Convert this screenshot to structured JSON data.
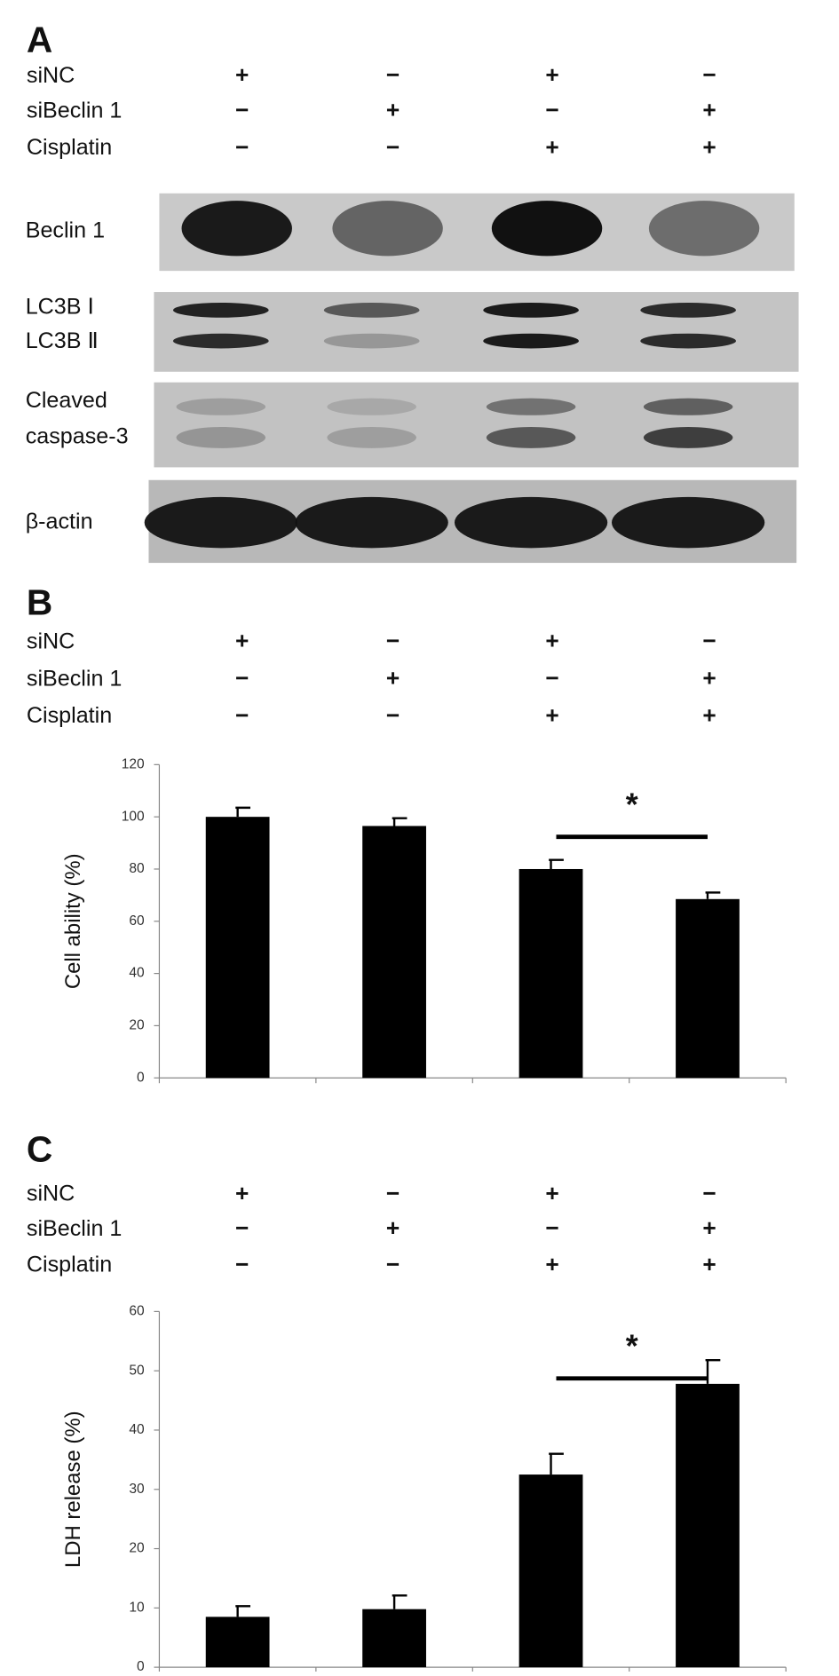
{
  "panels": [
    {
      "label": "A",
      "conditions": [
        {
          "name": "siNC",
          "signs": [
            "+",
            "−",
            "+",
            "−"
          ]
        },
        {
          "name": "siBeclin 1",
          "signs": [
            "−",
            "+",
            "−",
            "+"
          ]
        },
        {
          "name": "Cisplatin",
          "signs": [
            "−",
            "−",
            "+",
            "+"
          ]
        }
      ],
      "blot": [
        "Beclin 1",
        "LC3B Ⅰ",
        "LC3B Ⅱ",
        "Cleaved",
        "caspase-3",
        "β-actin"
      ]
    },
    {
      "label": "B",
      "conditions": [
        {
          "name": "siNC",
          "signs": [
            "+",
            "−",
            "+",
            "−"
          ]
        },
        {
          "name": "siBeclin 1",
          "signs": [
            "−",
            "+",
            "−",
            "+"
          ]
        },
        {
          "name": "Cisplatin",
          "signs": [
            "−",
            "−",
            "+",
            "+"
          ]
        }
      ]
    },
    {
      "label": "C",
      "conditions": [
        {
          "name": "siNC",
          "signs": [
            "+",
            "−",
            "+",
            "−"
          ]
        },
        {
          "name": "siBeclin 1",
          "signs": [
            "−",
            "+",
            "−",
            "+"
          ]
        },
        {
          "name": "Cisplatin",
          "signs": [
            "−",
            "−",
            "+",
            "+"
          ]
        }
      ]
    }
  ],
  "chart_data": [
    {
      "type": "bar",
      "y_label": "Cell ability (%)",
      "categories": [
        null,
        null,
        null,
        null
      ],
      "values": [
        100,
        96.5,
        80,
        68.5
      ],
      "errors": [
        3.5,
        3,
        3.5,
        2.5
      ],
      "color": "#000000",
      "ylim": [
        0,
        120
      ],
      "yticks": [
        0,
        20,
        40,
        60,
        80,
        100,
        120
      ],
      "annotation": "*"
    },
    {
      "type": "bar",
      "y_label": "LDH release (%)",
      "categories": [
        null,
        null,
        null,
        null
      ],
      "values": [
        8.5,
        9.8,
        32.5,
        47.8
      ],
      "errors": [
        1.8,
        2.3,
        3.5,
        4
      ],
      "color": "#000000",
      "ylim": [
        0,
        60
      ],
      "yticks": [
        0,
        10,
        20,
        30,
        40,
        50,
        60
      ],
      "annotation": "*"
    }
  ]
}
